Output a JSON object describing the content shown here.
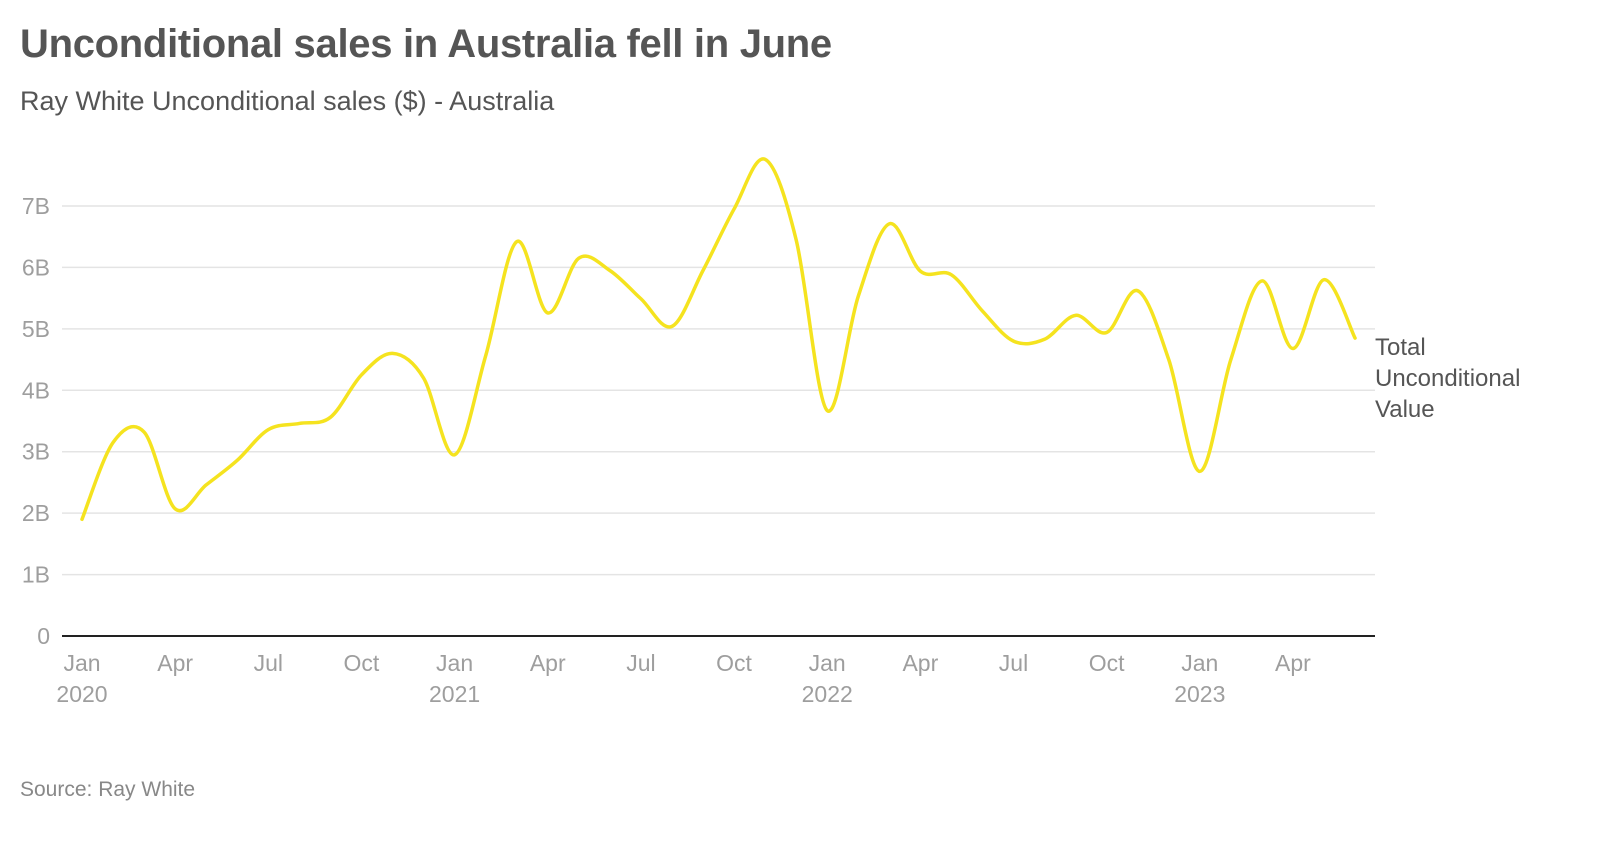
{
  "title": "Unconditional sales in Australia fell in June",
  "subtitle": "Ray White Unconditional sales ($) - Australia",
  "source": "Source: Ray White",
  "colors": {
    "line": "#f5e31f",
    "grid": "#e4e4e4",
    "axis": "#222222",
    "text": "#555555",
    "tick": "#9e9e9e"
  },
  "chart_data": {
    "type": "line",
    "title": "Unconditional sales in Australia fell in June",
    "subtitle": "Ray White Unconditional sales ($) - Australia",
    "xlabel": "",
    "ylabel": "",
    "ylim": [
      0,
      7000000000
    ],
    "yticks": [
      {
        "value": 0,
        "label": "0"
      },
      {
        "value": 1000000000,
        "label": "1B"
      },
      {
        "value": 2000000000,
        "label": "2B"
      },
      {
        "value": 3000000000,
        "label": "3B"
      },
      {
        "value": 4000000000,
        "label": "4B"
      },
      {
        "value": 5000000000,
        "label": "5B"
      },
      {
        "value": 6000000000,
        "label": "6B"
      },
      {
        "value": 7000000000,
        "label": "7B"
      }
    ],
    "xticks": [
      {
        "index": 0,
        "label": "Jan",
        "year": "2020"
      },
      {
        "index": 3,
        "label": "Apr",
        "year": ""
      },
      {
        "index": 6,
        "label": "Jul",
        "year": ""
      },
      {
        "index": 9,
        "label": "Oct",
        "year": ""
      },
      {
        "index": 12,
        "label": "Jan",
        "year": "2021"
      },
      {
        "index": 15,
        "label": "Apr",
        "year": ""
      },
      {
        "index": 18,
        "label": "Jul",
        "year": ""
      },
      {
        "index": 21,
        "label": "Oct",
        "year": ""
      },
      {
        "index": 24,
        "label": "Jan",
        "year": "2022"
      },
      {
        "index": 27,
        "label": "Apr",
        "year": ""
      },
      {
        "index": 30,
        "label": "Jul",
        "year": ""
      },
      {
        "index": 33,
        "label": "Oct",
        "year": ""
      },
      {
        "index": 36,
        "label": "Jan",
        "year": "2023"
      },
      {
        "index": 39,
        "label": "Apr",
        "year": ""
      }
    ],
    "series": [
      {
        "name": "Total Unconditional Value",
        "label_lines": [
          "Total",
          "Unconditional",
          "Value"
        ],
        "values": [
          1900000000,
          3150000000,
          3320000000,
          2070000000,
          2460000000,
          2860000000,
          3360000000,
          3460000000,
          3560000000,
          4250000000,
          4600000000,
          4200000000,
          2950000000,
          4560000000,
          6420000000,
          5260000000,
          6150000000,
          5950000000,
          5490000000,
          5040000000,
          5950000000,
          6950000000,
          7760000000,
          6450000000,
          3670000000,
          5530000000,
          6710000000,
          5940000000,
          5880000000,
          5290000000,
          4800000000,
          4830000000,
          5220000000,
          4940000000,
          5620000000,
          4500000000,
          2680000000,
          4500000000,
          5780000000,
          4680000000,
          5800000000,
          4850000000
        ]
      }
    ]
  }
}
